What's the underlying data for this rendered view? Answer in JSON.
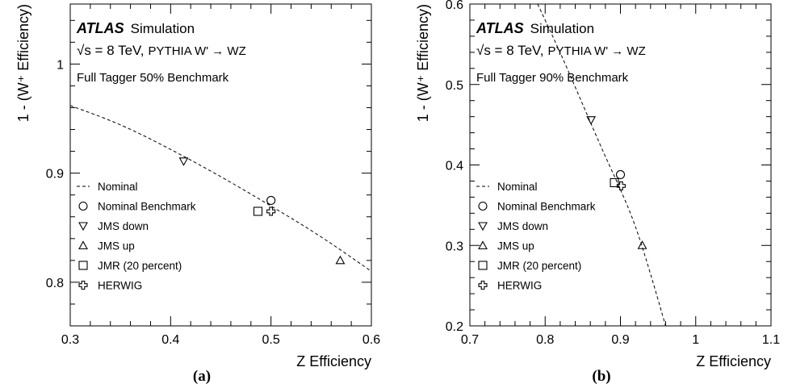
{
  "chart_data": [
    {
      "panel_label": "(a)",
      "type": "scatter",
      "xlabel": "Z Efficiency",
      "ylabel": "1 - (W⁺ Efficiency)",
      "xlim": [
        0.3,
        0.6
      ],
      "ylim": [
        0.76,
        1.055
      ],
      "xticks": [
        0.3,
        0.4,
        0.5,
        0.6
      ],
      "xtick_labels": [
        "0.3",
        "0.4",
        "0.5",
        "0.6"
      ],
      "yticks": [
        0.8,
        0.9,
        1.0
      ],
      "ytick_labels": [
        "0.8",
        "0.9",
        "1"
      ],
      "annotation": {
        "experiment": "ATLAS",
        "label": "Simulation",
        "energy": "√s = 8 TeV,",
        "sample": "PYTHIA W' → WZ",
        "benchmark": "Full Tagger 50% Benchmark"
      },
      "curve": {
        "name": "Nominal",
        "x": [
          0.3,
          0.35,
          0.4,
          0.45,
          0.5,
          0.55,
          0.6
        ],
        "y": [
          0.962,
          0.945,
          0.922,
          0.897,
          0.87,
          0.842,
          0.81
        ]
      },
      "series": [
        {
          "name": "Nominal Benchmark",
          "marker": "circle",
          "x": [
            0.5
          ],
          "y": [
            0.875
          ]
        },
        {
          "name": "JMS down",
          "marker": "triangle-down",
          "x": [
            0.413
          ],
          "y": [
            0.911
          ]
        },
        {
          "name": "JMS up",
          "marker": "triangle-up",
          "x": [
            0.569
          ],
          "y": [
            0.82
          ]
        },
        {
          "name": "JMR (20 percent)",
          "marker": "square",
          "x": [
            0.487
          ],
          "y": [
            0.865
          ]
        },
        {
          "name": "HERWIG",
          "marker": "cross",
          "x": [
            0.5
          ],
          "y": [
            0.865
          ]
        }
      ]
    },
    {
      "panel_label": "(b)",
      "type": "scatter",
      "xlabel": "Z Efficiency",
      "ylabel": "1 - (W⁺ Efficiency)",
      "xlim": [
        0.7,
        1.1
      ],
      "ylim": [
        0.2,
        0.6
      ],
      "xticks": [
        0.7,
        0.8,
        0.9,
        1.0,
        1.1
      ],
      "xtick_labels": [
        "0.7",
        "0.8",
        "0.9",
        "1",
        "1.1"
      ],
      "yticks": [
        0.2,
        0.3,
        0.4,
        0.5,
        0.6
      ],
      "ytick_labels": [
        "0.2",
        "0.3",
        "0.4",
        "0.5",
        "0.6"
      ],
      "annotation": {
        "experiment": "ATLAS",
        "label": "Simulation",
        "energy": "√s = 8 TeV,",
        "sample": "PYTHIA W' → WZ",
        "benchmark": "Full Tagger 90% Benchmark"
      },
      "curve": {
        "name": "Nominal",
        "x": [
          0.79,
          0.82,
          0.85,
          0.88,
          0.9,
          0.92,
          0.94,
          0.96
        ],
        "y": [
          0.6,
          0.54,
          0.475,
          0.41,
          0.37,
          0.325,
          0.265,
          0.2
        ]
      },
      "series": [
        {
          "name": "Nominal Benchmark",
          "marker": "circle",
          "x": [
            0.9
          ],
          "y": [
            0.388
          ]
        },
        {
          "name": "JMS down",
          "marker": "triangle-down",
          "x": [
            0.861
          ],
          "y": [
            0.456
          ]
        },
        {
          "name": "JMS up",
          "marker": "triangle-up",
          "x": [
            0.929
          ],
          "y": [
            0.3
          ]
        },
        {
          "name": "JMR (20 percent)",
          "marker": "square",
          "x": [
            0.892
          ],
          "y": [
            0.378
          ]
        },
        {
          "name": "HERWIG",
          "marker": "cross",
          "x": [
            0.901
          ],
          "y": [
            0.374
          ]
        }
      ]
    }
  ]
}
